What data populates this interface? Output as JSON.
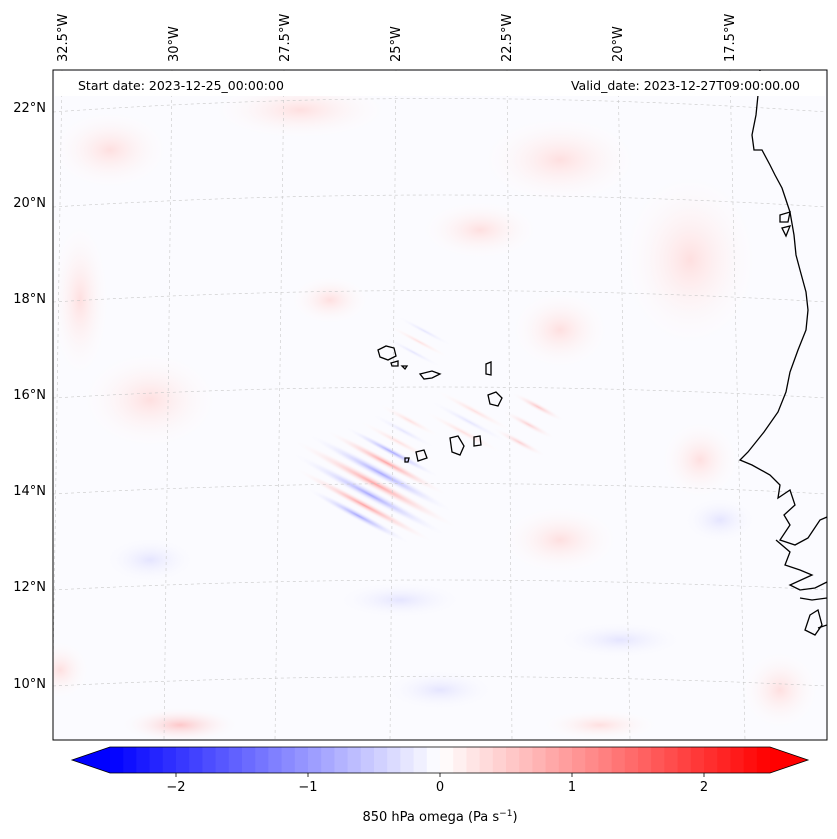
{
  "header": {
    "start_date": "Start date: 2023-12-25_00:00:00",
    "valid_date": "Valid_date: 2023-12-27T09:00:00.00"
  },
  "map": {
    "longitude_labels": [
      "32.5°W",
      "30°W",
      "27.5°W",
      "25°W",
      "22.5°W",
      "20°W",
      "17.5°W"
    ],
    "latitude_labels": [
      "22°N",
      "20°N",
      "18°N",
      "16°N",
      "14°N",
      "12°N",
      "10°N"
    ],
    "field": "850 hPa omega",
    "gridlines": true,
    "coastline_color": "#000000"
  },
  "colorbar": {
    "label_text": "850 hPa omega (Pa s",
    "label_exponent": "−1",
    "label_close": ")",
    "ticks": [
      "−2",
      "−1",
      "0",
      "1",
      "2"
    ],
    "tick_values": [
      -2,
      -1,
      0,
      1,
      2
    ],
    "range": [
      -2.5,
      2.5
    ],
    "extend": "both",
    "cmap": "bwr",
    "colors": {
      "negative": "#0000ff",
      "zero": "#ffffff",
      "positive": "#ff0000"
    }
  }
}
